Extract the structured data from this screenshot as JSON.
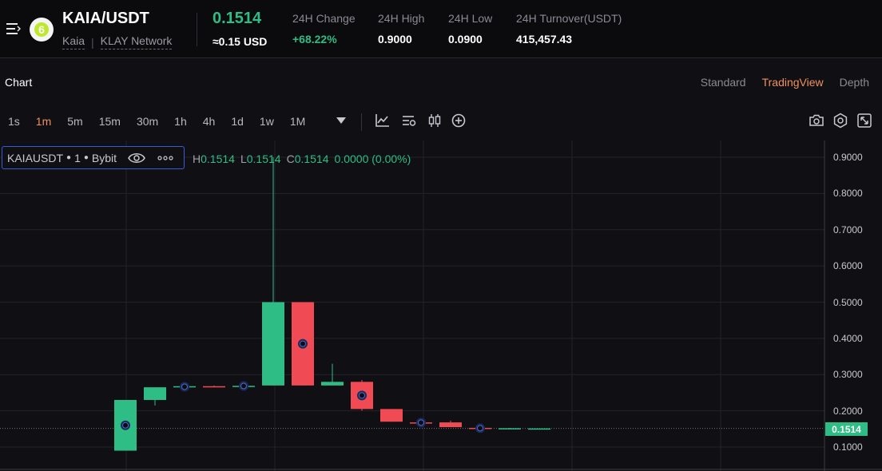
{
  "header": {
    "pair": "KAIA/USDT",
    "sub_name": "Kaia",
    "sub_network": "KLAY Network",
    "last_price": "0.1514",
    "price_usd": "≈0.15 USD",
    "stats": [
      {
        "label": "24H Change",
        "value": "+68.22%",
        "green": true
      },
      {
        "label": "24H High",
        "value": "0.9000",
        "green": false
      },
      {
        "label": "24H Low",
        "value": "0.0900",
        "green": false
      },
      {
        "label": "24H Turnover(USDT)",
        "value": "415,457.43",
        "green": false
      }
    ],
    "logo_glyph": "6"
  },
  "chart_section": {
    "title": "Chart",
    "views": [
      "Standard",
      "TradingView",
      "Depth"
    ],
    "active_view": "TradingView"
  },
  "toolbar": {
    "intervals": [
      "1s",
      "1m",
      "5m",
      "15m",
      "30m",
      "1h",
      "4h",
      "1d",
      "1w",
      "1M"
    ],
    "active_interval": "1m"
  },
  "legend": {
    "symbol": "KAIAUSDT",
    "interval": "1",
    "exchange": "Bybit"
  },
  "ohlc": {
    "h_label": "H",
    "h": "0.1514",
    "l_label": "L",
    "l": "0.1514",
    "c_label": "C",
    "c": "0.1514",
    "change": "0.0000 (0.00%)"
  },
  "current_price_tag": "0.1514",
  "colors": {
    "up": "#2ebd85",
    "down": "#f04a55",
    "accent": "#f0915c",
    "legend_border": "#3b5bd6"
  },
  "chart_data": {
    "type": "candlestick",
    "y_ticks": [
      "0.9000",
      "0.8000",
      "0.7000",
      "0.6000",
      "0.5000",
      "0.4000",
      "0.3000",
      "0.2000",
      "0.1000"
    ],
    "ylim": [
      0.09,
      0.92
    ],
    "candles": [
      {
        "o": 0.09,
        "h": 0.23,
        "l": 0.09,
        "c": 0.23,
        "marker": true
      },
      {
        "o": 0.23,
        "h": 0.265,
        "l": 0.215,
        "c": 0.265,
        "marker": false
      },
      {
        "o": 0.265,
        "h": 0.27,
        "l": 0.262,
        "c": 0.268,
        "marker": true
      },
      {
        "o": 0.268,
        "h": 0.27,
        "l": 0.266,
        "c": 0.267,
        "marker": false
      },
      {
        "o": 0.268,
        "h": 0.27,
        "l": 0.266,
        "c": 0.269,
        "marker": true
      },
      {
        "o": 0.27,
        "h": 0.9,
        "l": 0.27,
        "c": 0.5,
        "marker": false
      },
      {
        "o": 0.5,
        "h": 0.5,
        "l": 0.27,
        "c": 0.27,
        "marker": true
      },
      {
        "o": 0.27,
        "h": 0.33,
        "l": 0.27,
        "c": 0.28,
        "marker": false
      },
      {
        "o": 0.28,
        "h": 0.285,
        "l": 0.2,
        "c": 0.205,
        "marker": true
      },
      {
        "o": 0.205,
        "h": 0.205,
        "l": 0.17,
        "c": 0.17,
        "marker": false
      },
      {
        "o": 0.168,
        "h": 0.17,
        "l": 0.165,
        "c": 0.167,
        "marker": true
      },
      {
        "o": 0.168,
        "h": 0.173,
        "l": 0.155,
        "c": 0.155,
        "marker": false
      },
      {
        "o": 0.153,
        "h": 0.155,
        "l": 0.15,
        "c": 0.151,
        "marker": true
      },
      {
        "o": 0.151,
        "h": 0.153,
        "l": 0.151,
        "c": 0.152,
        "marker": false
      },
      {
        "o": 0.1514,
        "h": 0.1514,
        "l": 0.1514,
        "c": 0.1514,
        "marker": false
      }
    ],
    "last_price": 0.1514
  }
}
